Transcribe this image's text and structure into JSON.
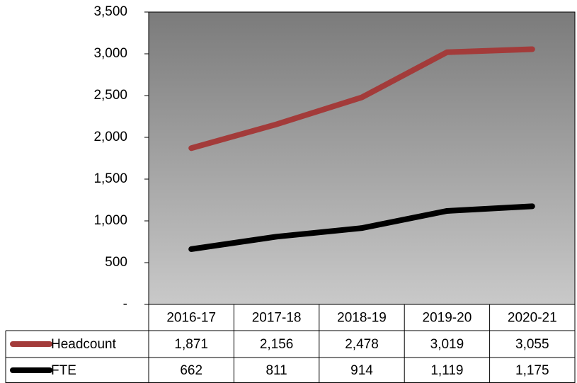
{
  "chart_data": {
    "type": "line",
    "categories": [
      "2016-17",
      "2017-18",
      "2018-19",
      "2019-20",
      "2020-21"
    ],
    "series": [
      {
        "name": "Headcount",
        "color": "#a33b3a",
        "values": [
          1871,
          2156,
          2478,
          3019,
          3055
        ],
        "value_labels": [
          "1,871",
          "2,156",
          "2,478",
          "3,019",
          "3,055"
        ]
      },
      {
        "name": "FTE",
        "color": "#000000",
        "values": [
          662,
          811,
          914,
          1119,
          1175
        ],
        "value_labels": [
          "662",
          "811",
          "914",
          "1,119",
          "1,175"
        ]
      }
    ],
    "ylim": [
      0,
      3500
    ],
    "yticks": [
      {
        "value": 0,
        "label": "-"
      },
      500,
      {
        "value": 1000,
        "label": "1,000"
      },
      {
        "value": 1500,
        "label": "1,500"
      },
      {
        "value": 2000,
        "label": "2,000"
      },
      {
        "value": 2500,
        "label": "2,500"
      },
      {
        "value": 3000,
        "label": "3,000"
      },
      {
        "value": 3500,
        "label": "3,500"
      }
    ],
    "grid": false
  }
}
